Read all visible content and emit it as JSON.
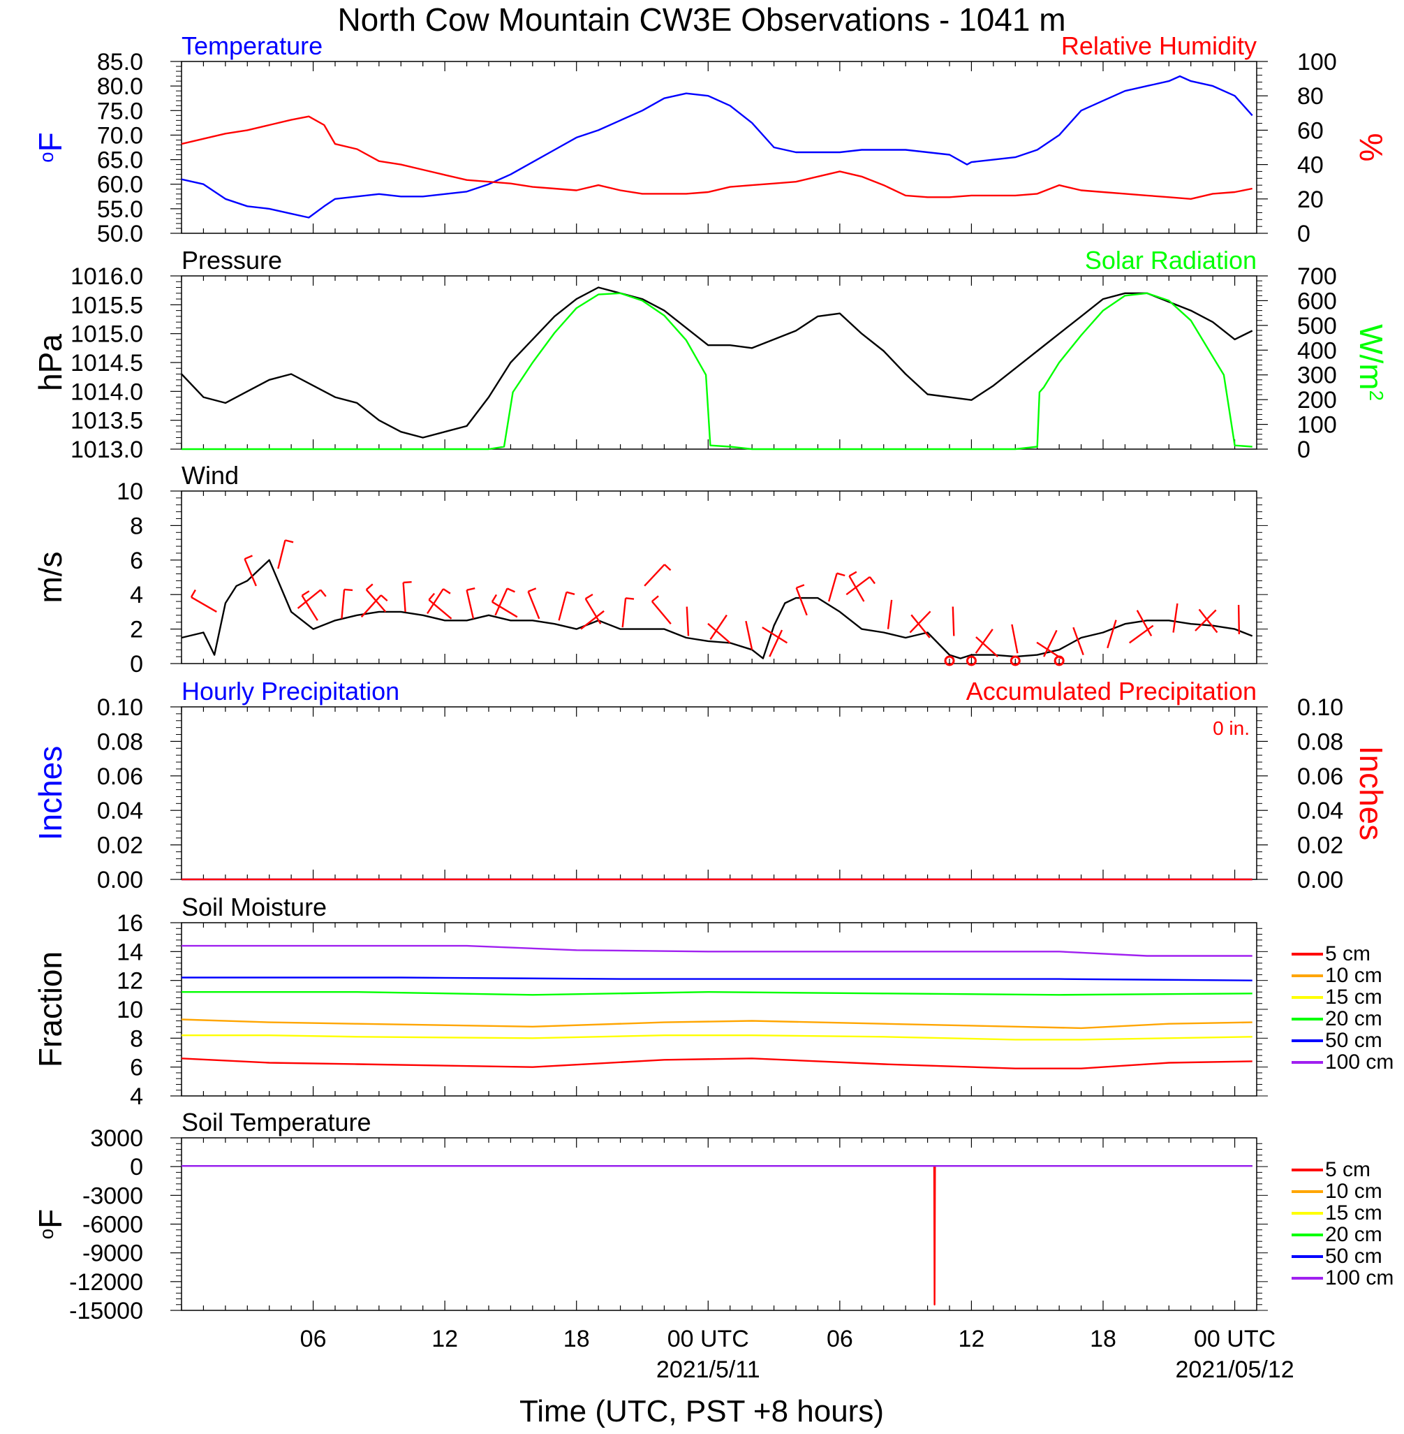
{
  "title": "North Cow Mountain CW3E Observations - 1041 m",
  "xlabel": "Time (UTC, PST +8 hours)",
  "x_ticks": [
    {
      "hour": 6,
      "label": "06",
      "date": ""
    },
    {
      "hour": 12,
      "label": "12",
      "date": ""
    },
    {
      "hour": 18,
      "label": "18",
      "date": ""
    },
    {
      "hour": 24,
      "label": "00 UTC",
      "date": "2021/5/11"
    },
    {
      "hour": 30,
      "label": "06",
      "date": ""
    },
    {
      "hour": 36,
      "label": "12",
      "date": ""
    },
    {
      "hour": 42,
      "label": "18",
      "date": ""
    },
    {
      "hour": 48,
      "label": "00 UTC",
      "date": "2021/05/12"
    }
  ],
  "colors": {
    "temperature": "#0000ff",
    "humidity": "#ff0000",
    "pressure": "#000000",
    "solar": "#00ff00",
    "wind": "#000000",
    "barb": "#ff0000",
    "hourly_precip": "#0000ff",
    "accum_precip": "#ff0000"
  },
  "chart_data": [
    {
      "type": "line",
      "title_left": "Temperature",
      "title_right": "Relative Humidity",
      "ylabel_left": "°F",
      "ylabel_right": "%",
      "xlim": [
        0,
        49
      ],
      "ylim_left": [
        50,
        85
      ],
      "ylim_right": [
        0,
        100
      ],
      "yticks_left": [
        "50.0",
        "55.0",
        "60.0",
        "65.0",
        "70.0",
        "75.0",
        "80.0",
        "85.0"
      ],
      "yticks_right": [
        "0",
        "20",
        "40",
        "60",
        "80",
        "100"
      ],
      "series": [
        {
          "name": "Temperature",
          "axis": "left",
          "x": [
            0,
            1,
            2,
            3,
            4,
            5,
            5.8,
            6.5,
            7,
            8,
            9,
            10,
            11,
            12,
            13,
            14,
            15,
            16,
            17,
            18,
            19,
            20,
            21,
            22,
            23,
            24,
            25,
            26,
            27,
            28,
            29,
            30,
            31,
            32,
            33,
            34,
            35,
            35.8,
            36,
            37,
            38,
            39,
            40,
            41,
            42,
            43,
            44,
            45,
            45.5,
            46,
            47,
            48,
            48.8
          ],
          "y": [
            61,
            60,
            57,
            55.5,
            55,
            54,
            53.2,
            55.5,
            57,
            57.5,
            58,
            57.5,
            57.5,
            58,
            58.5,
            60,
            62,
            64.5,
            67,
            69.5,
            71,
            73,
            75,
            77.5,
            78.5,
            78,
            76,
            72.5,
            67.5,
            66.5,
            66.5,
            66.5,
            67,
            67,
            67,
            66.5,
            66,
            64,
            64.5,
            65,
            65.5,
            67,
            70,
            75,
            77,
            79,
            80,
            81,
            82,
            81,
            80,
            78,
            74
          ]
        },
        {
          "name": "Relative Humidity",
          "axis": "right",
          "x": [
            0,
            1,
            2,
            3,
            4,
            5,
            5.8,
            6.5,
            7,
            8,
            9,
            10,
            11,
            12,
            13,
            14,
            15,
            16,
            17,
            18,
            19,
            20,
            21,
            22,
            23,
            24,
            25,
            26,
            27,
            28,
            29,
            30,
            31,
            32,
            33,
            34,
            35,
            36,
            37,
            38,
            39,
            40,
            41,
            42,
            43,
            44,
            45,
            46,
            47,
            48,
            48.8
          ],
          "y": [
            52,
            55,
            58,
            60,
            63,
            66,
            68,
            63,
            52,
            49,
            42,
            40,
            37,
            34,
            31,
            30,
            29,
            27,
            26,
            25,
            28,
            25,
            23,
            23,
            23,
            24,
            27,
            28,
            29,
            30,
            33,
            36,
            33,
            28,
            22,
            21,
            21,
            22,
            22,
            22,
            23,
            28,
            25,
            24,
            23,
            22,
            21,
            20,
            23,
            24,
            26
          ]
        }
      ]
    },
    {
      "type": "line",
      "title_left": "Pressure",
      "title_right": "Solar Radiation",
      "ylabel_left": "hPa",
      "ylabel_right": "W/m²",
      "xlim": [
        0,
        49
      ],
      "ylim_left": [
        1013.0,
        1016.0
      ],
      "ylim_right": [
        0,
        700
      ],
      "yticks_left": [
        "1013.0",
        "1013.5",
        "1014.0",
        "1014.5",
        "1015.0",
        "1015.5",
        "1016.0"
      ],
      "yticks_right": [
        "0",
        "100",
        "200",
        "300",
        "400",
        "500",
        "600",
        "700"
      ],
      "series": [
        {
          "name": "Pressure",
          "axis": "left",
          "x": [
            0,
            1,
            2,
            3,
            4,
            5,
            6,
            7,
            8,
            9,
            10,
            11,
            12,
            13,
            14,
            15,
            16,
            17,
            18,
            19,
            20,
            21,
            22,
            23,
            24,
            25,
            26,
            27,
            28,
            29,
            30,
            31,
            32,
            33,
            34,
            35,
            36,
            37,
            38,
            39,
            40,
            41,
            42,
            43,
            44,
            45,
            46,
            47,
            48,
            48.8
          ],
          "y": [
            1014.3,
            1013.9,
            1013.8,
            1014.0,
            1014.2,
            1014.3,
            1014.1,
            1013.9,
            1013.8,
            1013.5,
            1013.3,
            1013.2,
            1013.3,
            1013.4,
            1013.9,
            1014.5,
            1014.9,
            1015.3,
            1015.6,
            1015.8,
            1015.7,
            1015.6,
            1015.4,
            1015.1,
            1014.8,
            1014.8,
            1014.75,
            1014.9,
            1015.05,
            1015.3,
            1015.35,
            1015.0,
            1014.7,
            1014.3,
            1013.95,
            1013.9,
            1013.85,
            1014.1,
            1014.4,
            1014.7,
            1015.0,
            1015.3,
            1015.6,
            1015.7,
            1015.7,
            1015.55,
            1015.4,
            1015.2,
            1014.9,
            1015.05
          ]
        },
        {
          "name": "Solar Radiation",
          "axis": "right",
          "x": [
            0,
            13,
            14,
            14.7,
            15.1,
            16,
            17,
            18,
            19,
            20,
            21,
            22,
            23,
            23.9,
            24.1,
            25,
            25.5,
            26,
            38,
            39,
            39.1,
            39.3,
            40,
            41,
            42,
            43,
            44,
            45,
            46,
            47.5,
            48,
            48.8
          ],
          "y": [
            0,
            0,
            0,
            10,
            230,
            350,
            470,
            570,
            625,
            630,
            600,
            540,
            440,
            300,
            15,
            10,
            5,
            0,
            0,
            10,
            230,
            250,
            350,
            460,
            560,
            620,
            630,
            600,
            520,
            300,
            15,
            10
          ]
        }
      ]
    },
    {
      "type": "line",
      "title_left": "Wind",
      "ylabel_left": "m/s",
      "xlim": [
        0,
        49
      ],
      "ylim_left": [
        0,
        10
      ],
      "yticks_left": [
        "0",
        "2",
        "4",
        "6",
        "8",
        "10"
      ],
      "series": [
        {
          "name": "Wind",
          "x": [
            0,
            1,
            1.5,
            2,
            2.5,
            3,
            4,
            5,
            6,
            7,
            8,
            9,
            10,
            11,
            12,
            13,
            14,
            15,
            16,
            17,
            18,
            19,
            20,
            21,
            22,
            23,
            24,
            25,
            26,
            26.5,
            27,
            27.5,
            28,
            29,
            30,
            31,
            32,
            33,
            34,
            35,
            35.5,
            36,
            37,
            38,
            39,
            40,
            41,
            42,
            43,
            44,
            45,
            46,
            47,
            48,
            48.8
          ],
          "y": [
            1.5,
            1.8,
            0.5,
            3.5,
            4.5,
            4.8,
            6.0,
            3.0,
            2.0,
            2.5,
            2.8,
            3.0,
            3.0,
            2.8,
            2.5,
            2.5,
            2.8,
            2.5,
            2.5,
            2.3,
            2.0,
            2.5,
            2.0,
            2.0,
            2.0,
            1.5,
            1.3,
            1.2,
            0.8,
            0.3,
            2.2,
            3.5,
            3.8,
            3.8,
            3.0,
            2.0,
            1.8,
            1.5,
            1.8,
            0.5,
            0.3,
            0.5,
            0.5,
            0.4,
            0.5,
            0.8,
            1.5,
            1.8,
            2.3,
            2.5,
            2.5,
            2.3,
            2.2,
            2.0,
            1.6
          ]
        }
      ]
    },
    {
      "type": "line",
      "title_left": "Hourly Precipitation",
      "title_right": "Accumulated Precipitation",
      "annotation": "0 in.",
      "ylabel_left": "Inches",
      "ylabel_right": "Inches",
      "xlim": [
        0,
        49
      ],
      "ylim_left": [
        0,
        0.1
      ],
      "ylim_right": [
        0,
        0.1
      ],
      "yticks_left": [
        "0.00",
        "0.02",
        "0.04",
        "0.06",
        "0.08",
        "0.10"
      ],
      "yticks_right": [
        "0.00",
        "0.02",
        "0.04",
        "0.06",
        "0.08",
        "0.10"
      ],
      "series": [
        {
          "name": "Hourly Precipitation",
          "x": [
            0,
            48.8
          ],
          "y": [
            0,
            0
          ]
        },
        {
          "name": "Accumulated Precipitation",
          "x": [
            0,
            48.8
          ],
          "y": [
            0,
            0
          ]
        }
      ]
    },
    {
      "type": "line",
      "title_left": "Soil Moisture",
      "ylabel_left": "Fraction",
      "xlim": [
        0,
        49
      ],
      "ylim_left": [
        4,
        16
      ],
      "yticks_left": [
        "4",
        "6",
        "8",
        "10",
        "12",
        "14",
        "16"
      ],
      "legend_position": "right",
      "series": [
        {
          "name": "5 cm",
          "color": "#ff0000",
          "x": [
            0,
            4,
            8,
            16,
            22,
            26,
            32,
            38,
            41,
            45,
            48.8
          ],
          "y": [
            6.6,
            6.3,
            6.2,
            6.0,
            6.5,
            6.6,
            6.2,
            5.9,
            5.9,
            6.3,
            6.4
          ]
        },
        {
          "name": "10 cm",
          "color": "#ffa500",
          "x": [
            0,
            4,
            8,
            16,
            22,
            26,
            32,
            38,
            41,
            45,
            48.8
          ],
          "y": [
            9.3,
            9.1,
            9.0,
            8.8,
            9.1,
            9.2,
            9.0,
            8.8,
            8.7,
            9.0,
            9.1
          ]
        },
        {
          "name": "15 cm",
          "color": "#ffff00",
          "x": [
            0,
            4,
            8,
            16,
            22,
            26,
            32,
            38,
            41,
            45,
            48.8
          ],
          "y": [
            8.2,
            8.2,
            8.1,
            8.0,
            8.2,
            8.2,
            8.1,
            7.9,
            7.9,
            8.0,
            8.1
          ]
        },
        {
          "name": "20 cm",
          "color": "#00ff00",
          "x": [
            0,
            8,
            16,
            24,
            32,
            40,
            48.8
          ],
          "y": [
            11.2,
            11.2,
            11.0,
            11.2,
            11.1,
            11.0,
            11.1
          ]
        },
        {
          "name": "50 cm",
          "color": "#0000ff",
          "x": [
            0,
            10,
            20,
            30,
            40,
            48.8
          ],
          "y": [
            12.2,
            12.2,
            12.1,
            12.1,
            12.1,
            12.0
          ]
        },
        {
          "name": "100 cm",
          "color": "#a020f0",
          "x": [
            0,
            8,
            13,
            18,
            24,
            30,
            40,
            44,
            48.8
          ],
          "y": [
            14.4,
            14.4,
            14.4,
            14.1,
            14.0,
            14.0,
            14.0,
            13.7,
            13.7
          ]
        }
      ]
    },
    {
      "type": "line",
      "title_left": "Soil Temperature",
      "ylabel_left": "°F",
      "xlim": [
        0,
        49
      ],
      "ylim_left": [
        -15000,
        3000
      ],
      "yticks_left": [
        "-15000",
        "-12000",
        "-9000",
        "-6000",
        "-3000",
        "0",
        "3000"
      ],
      "legend_position": "right",
      "series": [
        {
          "name": "5 cm",
          "color": "#ff0000",
          "x": [
            0,
            34.3,
            34.32,
            34.34,
            48.8
          ],
          "y": [
            65,
            65,
            -14400,
            65,
            65
          ]
        },
        {
          "name": "10 cm",
          "color": "#ffa500",
          "x": [
            0,
            48.8
          ],
          "y": [
            64,
            64
          ]
        },
        {
          "name": "15 cm",
          "color": "#ffff00",
          "x": [
            0,
            48.8
          ],
          "y": [
            63,
            63
          ]
        },
        {
          "name": "20 cm",
          "color": "#00ff00",
          "x": [
            0,
            48.8
          ],
          "y": [
            62,
            62
          ]
        },
        {
          "name": "50 cm",
          "color": "#0000ff",
          "x": [
            0,
            48.8
          ],
          "y": [
            61,
            61
          ]
        },
        {
          "name": "100 cm",
          "color": "#a020f0",
          "x": [
            0,
            48.8
          ],
          "y": [
            60,
            60
          ]
        }
      ]
    }
  ],
  "wind_barbs": {
    "x": [
      1.6,
      3.4,
      4.4,
      5.3,
      6.2,
      7.3,
      8.2,
      9.3,
      10.2,
      11.2,
      12.3,
      13.3,
      14.3,
      15.3,
      16.3,
      17.2,
      18.2,
      19.1,
      20.1,
      21.1,
      22.3,
      23.1,
      24.1,
      25.0,
      26.0,
      26.8,
      27.6,
      28.5,
      29.5,
      30.3,
      31.1,
      32.2,
      33.2,
      34.1,
      35.2,
      36.2,
      37.2,
      38.1,
      39.3,
      40.1,
      41.1,
      42.2,
      43.2,
      44.2,
      45.2,
      46.2,
      47.2,
      48.2
    ],
    "speed": [
      3.0,
      4.5,
      5.5,
      3.2,
      2.5,
      2.6,
      2.7,
      3.0,
      3.0,
      2.9,
      2.6,
      2.6,
      2.8,
      2.7,
      2.6,
      2.5,
      2.0,
      2.3,
      2.1,
      4.5,
      2.3,
      1.6,
      1.4,
      1.2,
      0.8,
      0.4,
      1.2,
      2.8,
      3.6,
      4.0,
      3.6,
      2.0,
      1.8,
      1.5,
      1.6,
      0.6,
      0.4,
      0.6,
      0.4,
      0.3,
      0.5,
      0.9,
      1.2,
      1.6,
      1.8,
      1.9,
      1.8,
      1.7
    ],
    "calm_x": [
      35.0,
      36.0,
      38.0,
      40.0
    ]
  }
}
